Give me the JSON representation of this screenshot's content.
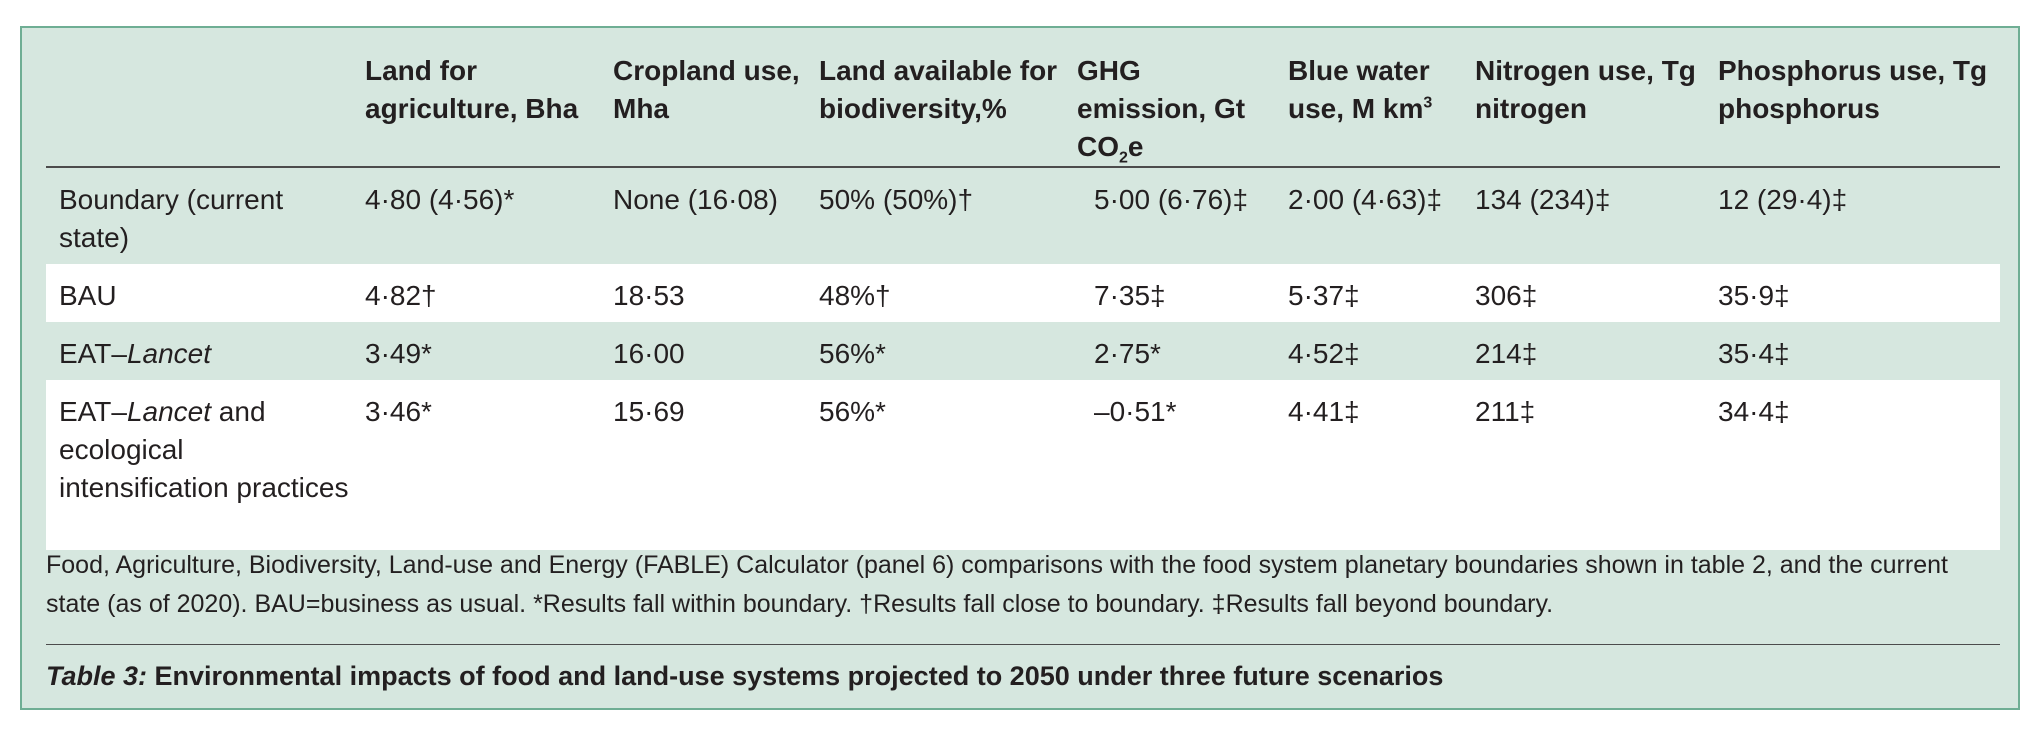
{
  "table": {
    "headers": [
      "",
      "Land for agriculture, Bha",
      "Cropland use, Mha",
      "Land available for biodiversity,%",
      "GHG emission, Gt CO",
      "Blue water use, M km",
      "Nitrogen use, Tg nitrogen",
      "Phosphorus use, Tg phosphorus"
    ],
    "header_ghg_sub": "2",
    "header_ghg_after": "e",
    "header_water_sup": "3",
    "rows": [
      {
        "label": "Boundary (current state)",
        "cells": [
          "4·80 (4·56)*",
          "None (16·08)",
          "50% (50%)†",
          "5·00 (6·76)‡",
          "2·00 (4·63)‡",
          "134 (234)‡",
          "12 (29·4)‡"
        ]
      },
      {
        "label": "BAU",
        "cells": [
          "4·82†",
          "18·53",
          "48%†",
          "7·35‡",
          "5·37‡",
          "306‡",
          "35·9‡"
        ]
      },
      {
        "label_prefix": "EAT–",
        "label_italic": "Lancet",
        "cells": [
          "3·49*",
          "16·00",
          "56%*",
          "2·75*",
          "4·52‡",
          "214‡",
          "35·4‡"
        ]
      },
      {
        "label_prefix": "EAT–",
        "label_italic": "Lancet",
        "label_suffix": " and ecological intensification practices",
        "cells": [
          "3·46*",
          "15·69",
          "56%*",
          "–0·51*",
          "4·41‡",
          "211‡",
          "34·4‡"
        ]
      }
    ]
  },
  "caption": "Food, Agriculture, Biodiversity, Land-use and Energy (FABLE) Calculator (panel 6) comparisons with the food system planetary boundaries shown in table 2, and the current state (as of 2020). BAU=business as usual. *Results fall within boundary. †Results fall close to boundary. ‡Results fall beyond boundary.",
  "title": {
    "label": "Table 3:",
    "text": " Environmental impacts of food and land-use systems projected to 2050 under three future scenarios"
  },
  "colors": {
    "panel_bg": "#d6e7df",
    "border": "#6fae94",
    "white_row": "#ffffff"
  }
}
